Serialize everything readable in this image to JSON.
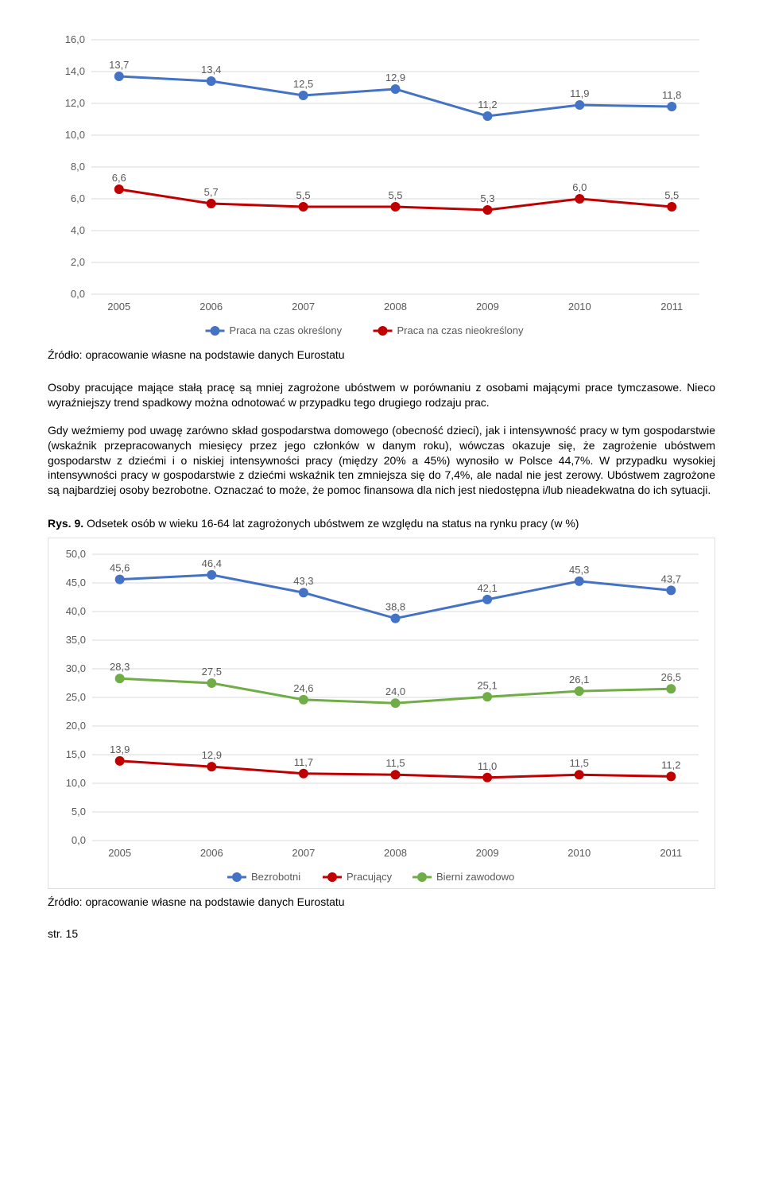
{
  "chart1": {
    "type": "line",
    "categories": [
      "2005",
      "2006",
      "2007",
      "2008",
      "2009",
      "2010",
      "2011"
    ],
    "series": [
      {
        "name": "Praca na czas określony",
        "color": "#4472c4",
        "values": [
          13.7,
          13.4,
          12.5,
          12.9,
          11.2,
          11.9,
          11.8
        ]
      },
      {
        "name": "Praca na czas nieokreślony",
        "color": "#c00000",
        "values": [
          6.6,
          5.7,
          5.5,
          5.5,
          5.3,
          6.0,
          5.5
        ]
      }
    ],
    "ylim": [
      0,
      16
    ],
    "ytick_step": 2,
    "data_label_fontsize": 13,
    "data_label_color": "#595959",
    "axis_label_fontsize": 13,
    "axis_label_color": "#595959",
    "grid_color": "#d9d9d9",
    "background_color": "#ffffff",
    "marker_size": 6,
    "line_width": 3,
    "legend_fontsize": 13
  },
  "source1": "Źródło: opracowanie własne na podstawie danych Eurostatu",
  "para1": "Osoby pracujące mające stałą pracę są mniej zagrożone ubóstwem w porównaniu z osobami mającymi prace tymczasowe. Nieco wyraźniejszy trend spadkowy można odnotować w przypadku tego drugiego rodzaju prac.",
  "para2": "Gdy weźmiemy pod uwagę zarówno skład gospodarstwa domowego (obecność dzieci), jak i intensywność pracy w tym gospodarstwie (wskaźnik przepracowanych miesięcy przez jego członków w danym roku), wówczas okazuje się, że zagrożenie ubóstwem gospodarstw z dziećmi i o niskiej intensywności pracy (między 20% a 45%) wynosiło w Polsce 44,7%. W przypadku wysokiej intensywności pracy w gospodarstwie z dziećmi wskaźnik ten zmniejsza się do 7,4%, ale nadal nie jest zerowy. Ubóstwem zagrożone są najbardziej osoby bezrobotne. Oznaczać to może, że pomoc finansowa dla nich jest niedostępna i/lub nieadekwatna do ich sytuacji.",
  "fig9_label": "Rys. 9.",
  "fig9_text": " Odsetek osób w wieku 16-64 lat zagrożonych ubóstwem ze względu na status na rynku pracy (w %)",
  "chart2": {
    "type": "line",
    "categories": [
      "2005",
      "2006",
      "2007",
      "2008",
      "2009",
      "2010",
      "2011"
    ],
    "series": [
      {
        "name": "Bezrobotni",
        "color": "#4472c4",
        "values": [
          45.6,
          46.4,
          43.3,
          38.8,
          42.1,
          45.3,
          43.7
        ]
      },
      {
        "name": "Pracujący",
        "color": "#c00000",
        "values": [
          13.9,
          12.9,
          11.7,
          11.5,
          11.0,
          11.5,
          11.2
        ]
      },
      {
        "name": "Bierni zawodowo",
        "color": "#70ad47",
        "values": [
          28.3,
          27.5,
          24.6,
          24.0,
          25.1,
          26.1,
          26.5
        ]
      }
    ],
    "ylim": [
      0,
      50
    ],
    "ytick_step": 5,
    "data_label_fontsize": 13,
    "data_label_color": "#595959",
    "axis_label_fontsize": 13,
    "axis_label_color": "#595959",
    "grid_color": "#d9d9d9",
    "background_color": "#ffffff",
    "marker_size": 6,
    "line_width": 3,
    "legend_fontsize": 13
  },
  "source2": "Źródło: opracowanie własne na podstawie danych Eurostatu",
  "page_num": "str. 15",
  "label_positions": {
    "chart1": {
      "0": [
        [
          -6,
          -12
        ],
        [
          -6,
          -12
        ]
      ],
      "1": [
        [
          -6,
          -12
        ],
        [
          -6,
          -12
        ]
      ]
    },
    "chart2": {
      "0": [
        [
          -6,
          -12
        ],
        [
          -6,
          -12
        ],
        [
          -6,
          -12
        ],
        [
          -6,
          -12
        ],
        [
          -6,
          -12
        ],
        [
          -6,
          -12
        ],
        [
          -6,
          -12
        ]
      ],
      "1": [
        [
          -6,
          -12
        ],
        [
          -6,
          -12
        ],
        [
          -6,
          -12
        ],
        [
          -6,
          -12
        ],
        [
          -6,
          -12
        ],
        [
          -6,
          -12
        ],
        [
          -6,
          -12
        ]
      ],
      "2": [
        [
          -6,
          -12
        ],
        [
          -6,
          -12
        ],
        [
          -6,
          -12
        ],
        [
          -6,
          -12
        ],
        [
          -6,
          -12
        ],
        [
          -6,
          -12
        ],
        [
          -6,
          -12
        ]
      ]
    }
  }
}
